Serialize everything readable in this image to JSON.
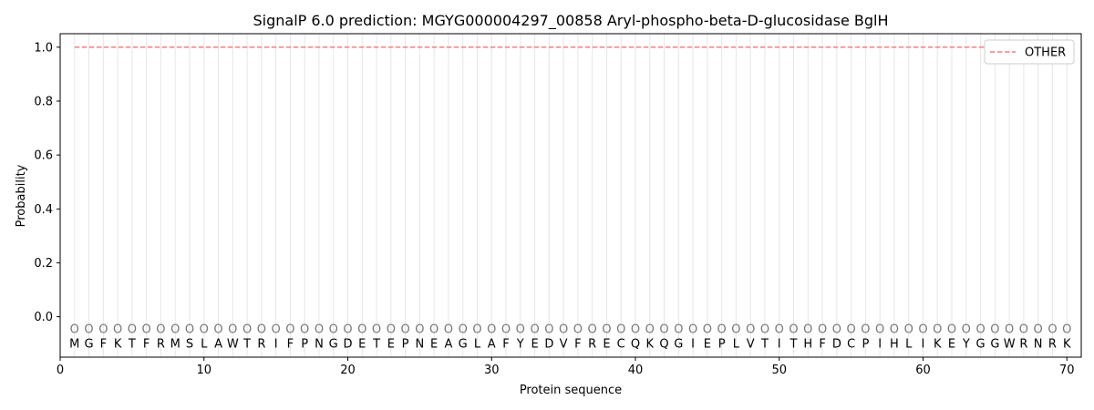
{
  "chart_data": {
    "type": "line",
    "title": "SignalP 6.0 prediction: MGYG000004297_00858 Aryl-phospho-beta-D-glucosidase BglH",
    "xlabel": "Protein sequence",
    "ylabel": "Probability",
    "xlim": [
      0,
      71
    ],
    "ylim": [
      -0.15,
      1.05
    ],
    "xticks": [
      0,
      10,
      20,
      30,
      40,
      50,
      60,
      70
    ],
    "yticks": [
      0.0,
      0.2,
      0.4,
      0.6,
      0.8,
      1.0
    ],
    "ytick_labels": [
      "0.0",
      "0.2",
      "0.4",
      "0.6",
      "0.8",
      "1.0"
    ],
    "grid": "vertical lines at each residue",
    "legend_position": "top-right",
    "sequence": [
      "M",
      "G",
      "F",
      "K",
      "T",
      "F",
      "R",
      "M",
      "S",
      "L",
      "A",
      "W",
      "T",
      "R",
      "I",
      "F",
      "P",
      "N",
      "G",
      "D",
      "E",
      "T",
      "E",
      "P",
      "N",
      "E",
      "A",
      "G",
      "L",
      "A",
      "F",
      "Y",
      "E",
      "D",
      "V",
      "F",
      "R",
      "E",
      "C",
      "Q",
      "K",
      "Q",
      "G",
      "I",
      "E",
      "P",
      "L",
      "V",
      "T",
      "I",
      "T",
      "H",
      "F",
      "D",
      "C",
      "P",
      "I",
      "H",
      "L",
      "I",
      "K",
      "E",
      "Y",
      "G",
      "G",
      "W",
      "R",
      "N",
      "R",
      "K"
    ],
    "region_label": "O",
    "region_label_y": -0.045,
    "sequence_label_y": -0.1,
    "series": [
      {
        "name": "OTHER",
        "color": "#f08080",
        "style": "dashed",
        "x_start": 1,
        "x_end": 70,
        "value": 1.0
      }
    ]
  }
}
